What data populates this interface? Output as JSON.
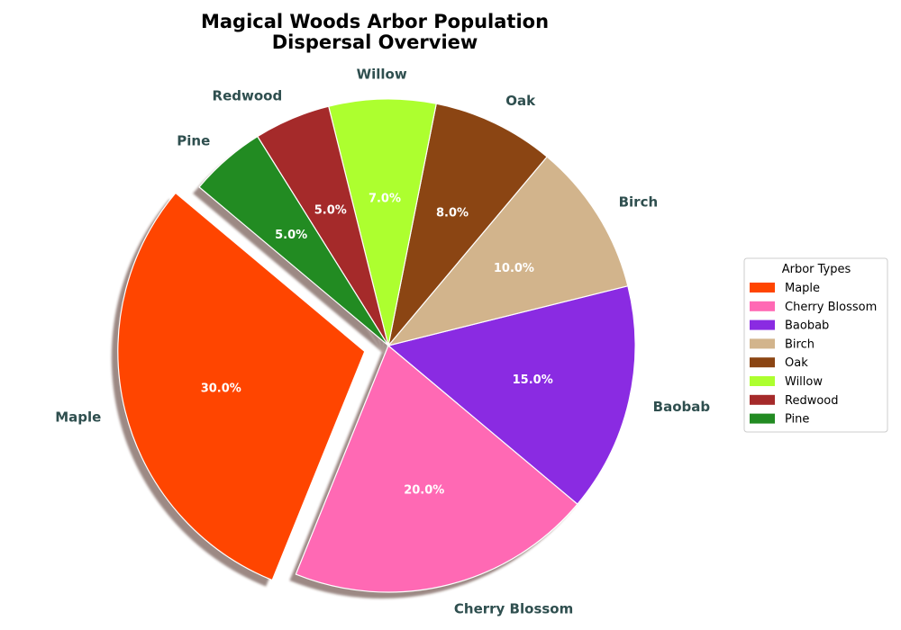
{
  "chart_data": {
    "type": "pie",
    "title_lines": [
      "Magical Woods Arbor Population",
      "Dispersal Overview"
    ],
    "categories": [
      "Maple",
      "Cherry Blossom",
      "Baobab",
      "Birch",
      "Oak",
      "Willow",
      "Redwood",
      "Pine"
    ],
    "values": [
      30,
      20,
      15,
      10,
      8,
      7,
      5,
      5
    ],
    "percent_labels": [
      "30.0%",
      "20.0%",
      "15.0%",
      "10.0%",
      "8.0%",
      "7.0%",
      "5.0%",
      "5.0%"
    ],
    "colors": [
      "#ff4500",
      "#ff69b4",
      "#8a2be2",
      "#d2b48c",
      "#8b4513",
      "#adff2f",
      "#a52a2a",
      "#228b22"
    ],
    "exploded": [
      "Maple"
    ],
    "shadow": true,
    "start_angle_deg": 140,
    "direction": "counterclockwise",
    "legend": {
      "title": "Arbor Types",
      "placement": "center-right"
    }
  }
}
